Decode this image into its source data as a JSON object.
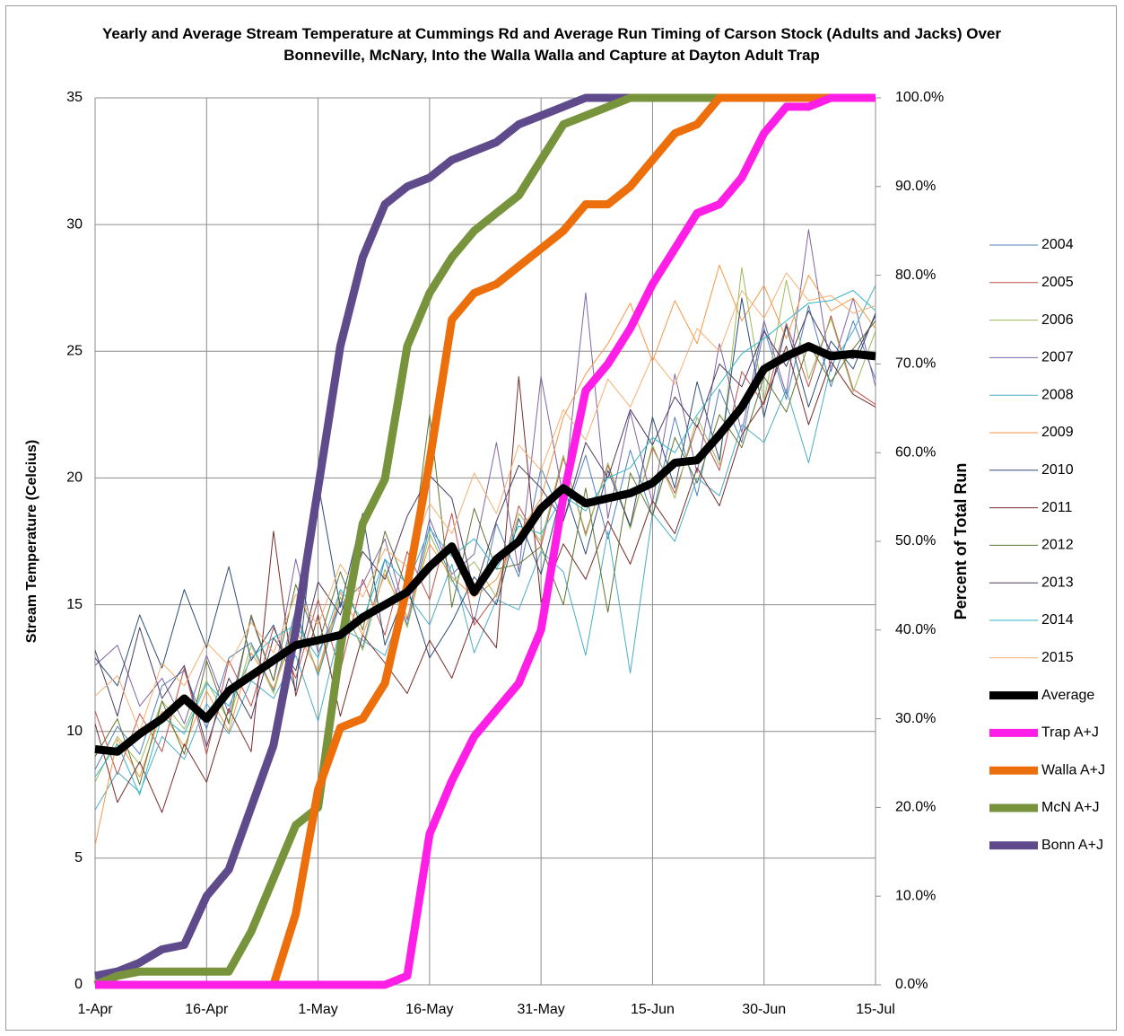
{
  "chart_data": {
    "type": "line",
    "title": "Yearly and Average Stream Temperature at Cummings Rd and Average Run Timing of Carson Stock (Adults and Jacks) Over Bonneville, McNary, Into the Walla Walla and Capture at Dayton Adult Trap",
    "y_label": "Stream Temperature (Celcius)",
    "y2_label": "Percent of Total Run",
    "categories": [
      "1-Apr",
      null,
      null,
      null,
      null,
      "16-Apr",
      null,
      null,
      null,
      null,
      "1-May",
      null,
      null,
      null,
      null,
      "16-May",
      null,
      null,
      null,
      null,
      "31-May",
      null,
      null,
      null,
      null,
      "15-Jun",
      null,
      null,
      null,
      null,
      "30-Jun",
      null,
      null,
      null,
      null,
      "15-Jul"
    ],
    "ylim": [
      0,
      35
    ],
    "yticks": [
      0,
      5,
      10,
      15,
      20,
      25,
      30,
      35
    ],
    "y2lim": [
      0,
      100
    ],
    "y2ticks": [
      {
        "value": 0,
        "label": "0.0%"
      },
      {
        "value": 10,
        "label": "10.0%"
      },
      {
        "value": 20,
        "label": "20.0%"
      },
      {
        "value": 30,
        "label": "30.0%"
      },
      {
        "value": 40,
        "label": "40.0%"
      },
      {
        "value": 50,
        "label": "50.0%"
      },
      {
        "value": 60,
        "label": "60.0%"
      },
      {
        "value": 70,
        "label": "70.0%"
      },
      {
        "value": 80,
        "label": "80.0%"
      },
      {
        "value": 90,
        "label": "90.0%"
      },
      {
        "value": 100,
        "label": "100.0%"
      }
    ],
    "grid": true,
    "legend": "right",
    "series": [
      {
        "name": "2004",
        "color": "#4f81bd",
        "width": 1,
        "values": [
          8.5,
          10.2,
          9.1,
          11.8,
          12.4,
          10.1,
          12.9,
          13.5,
          11.6,
          14.8,
          12.2,
          15.1,
          13.3,
          16.8,
          14.2,
          18.1,
          16.0,
          14.3,
          18.2,
          16.1,
          20.4,
          18.3,
          20.9,
          17.6,
          21.1,
          18.5,
          22.4,
          19.3,
          23.5,
          21.4,
          25.9,
          23.1,
          26.8,
          23.6,
          26.2,
          23.9
        ]
      },
      {
        "name": "2005",
        "color": "#c0504d",
        "width": 1,
        "values": [
          10.8,
          8.3,
          10.7,
          9.2,
          12.5,
          9.1,
          12.8,
          11.0,
          14.1,
          12.1,
          15.2,
          12.4,
          16.0,
          13.8,
          17.1,
          15.2,
          18.6,
          14.2,
          15.4,
          18.9,
          17.3,
          20.8,
          17.8,
          20.5,
          18.1,
          21.2,
          19.4,
          22.1,
          20.3,
          24.2,
          22.9,
          26.1,
          23.6,
          26.4,
          23.5,
          22.9
        ]
      },
      {
        "name": "2006",
        "color": "#9bbb59",
        "width": 1,
        "values": [
          8.0,
          9.8,
          8.7,
          11.2,
          10.1,
          12.0,
          10.4,
          13.4,
          11.5,
          14.6,
          12.3,
          15.3,
          13.2,
          16.4,
          14.1,
          17.8,
          15.9,
          16.7,
          15.3,
          18.6,
          17.5,
          20.9,
          17.7,
          20.6,
          18.0,
          21.3,
          19.2,
          22.4,
          20.5,
          28.3,
          23.0,
          27.8,
          23.9,
          26.3,
          23.4,
          25.8
        ]
      },
      {
        "name": "2007",
        "color": "#8064a2",
        "width": 1,
        "values": [
          12.6,
          13.4,
          11.0,
          12.1,
          10.3,
          13.0,
          10.7,
          14.5,
          12.0,
          16.8,
          13.1,
          15.0,
          15.8,
          17.6,
          14.4,
          18.4,
          16.2,
          17.0,
          21.4,
          16.3,
          24.0,
          19.2,
          27.3,
          18.4,
          22.6,
          19.0,
          24.1,
          20.2,
          25.3,
          21.8,
          26.2,
          23.3,
          29.8,
          24.2,
          27.1,
          23.6
        ]
      },
      {
        "name": "2008",
        "color": "#4bacc6",
        "width": 1,
        "values": [
          6.9,
          8.4,
          7.6,
          9.8,
          8.9,
          11.1,
          9.9,
          12.0,
          11.3,
          13.0,
          10.4,
          14.1,
          13.6,
          13.0,
          15.4,
          14.2,
          16.6,
          13.1,
          15.2,
          14.8,
          17.1,
          16.3,
          13.0,
          17.9,
          12.3,
          18.6,
          17.5,
          20.0,
          19.3,
          22.1,
          21.4,
          23.5,
          20.6,
          24.4,
          25.8,
          27.6
        ]
      },
      {
        "name": "2009",
        "color": "#f79646",
        "width": 1,
        "values": [
          5.5,
          9.7,
          8.2,
          10.8,
          9.4,
          11.6,
          10.0,
          13.1,
          11.7,
          14.0,
          12.4,
          15.5,
          13.8,
          16.2,
          14.5,
          17.4,
          16.1,
          15.3,
          16.0,
          17.8,
          19.2,
          22.4,
          24.1,
          25.3,
          26.9,
          24.6,
          27.0,
          25.3,
          28.4,
          26.2,
          27.6,
          25.5,
          28.0,
          26.6,
          27.1,
          25.9
        ]
      },
      {
        "name": "2010",
        "color": "#2c4d75",
        "width": 1,
        "values": [
          12.9,
          11.8,
          14.6,
          12.5,
          15.6,
          13.3,
          16.5,
          12.8,
          14.2,
          11.6,
          19.8,
          14.9,
          18.6,
          13.4,
          15.7,
          12.9,
          14.3,
          16.1,
          15.0,
          18.4,
          16.2,
          19.7,
          17.0,
          20.3,
          18.1,
          22.4,
          19.6,
          23.8,
          20.7,
          27.1,
          22.4,
          26.0,
          22.8,
          25.4,
          24.3,
          26.5
        ]
      },
      {
        "name": "2011",
        "color": "#772c2a",
        "width": 1,
        "values": [
          10.3,
          7.2,
          8.8,
          6.8,
          9.5,
          8.0,
          10.9,
          9.2,
          17.9,
          11.4,
          14.6,
          10.6,
          13.8,
          12.7,
          11.5,
          13.6,
          12.1,
          14.5,
          13.3,
          24.0,
          15.1,
          17.4,
          16.0,
          18.3,
          16.6,
          19.1,
          17.8,
          20.4,
          18.9,
          21.7,
          23.0,
          25.2,
          22.1,
          24.6,
          23.3,
          22.8
        ]
      },
      {
        "name": "2012",
        "color": "#5f7530",
        "width": 1,
        "values": [
          9.0,
          10.5,
          7.9,
          11.2,
          9.1,
          12.8,
          10.3,
          14.6,
          12.0,
          15.8,
          13.4,
          16.3,
          14.0,
          17.9,
          15.6,
          22.5,
          14.9,
          18.8,
          16.4,
          16.6,
          17.3,
          15.0,
          19.6,
          14.7,
          20.2,
          18.5,
          21.6,
          19.8,
          22.5,
          21.2,
          24.0,
          22.6,
          25.3,
          23.8,
          25.1,
          26.2
        ]
      },
      {
        "name": "2013",
        "color": "#4d3b62",
        "width": 1,
        "values": [
          13.2,
          10.6,
          14.1,
          11.3,
          12.6,
          9.4,
          12.1,
          10.5,
          13.7,
          12.4,
          15.9,
          14.6,
          17.1,
          16.0,
          18.5,
          20.1,
          19.2,
          15.5,
          18.3,
          20.5,
          19.6,
          18.3,
          21.4,
          20.0,
          22.7,
          21.3,
          23.2,
          22.0,
          24.5,
          23.6,
          25.8,
          24.4,
          26.6,
          25.0,
          24.7,
          26.4
        ]
      },
      {
        "name": "2014",
        "color": "#31b6c8",
        "width": 1,
        "values": [
          8.2,
          9.5,
          7.5,
          10.6,
          9.9,
          11.9,
          11.0,
          12.9,
          13.7,
          14.2,
          12.9,
          15.6,
          14.4,
          16.8,
          15.8,
          18.0,
          16.9,
          17.6,
          16.4,
          18.1,
          17.8,
          19.3,
          18.7,
          20.0,
          20.4,
          21.6,
          21.0,
          22.5,
          23.7,
          24.9,
          25.5,
          26.2,
          26.9,
          27.0,
          27.4,
          26.6
        ]
      },
      {
        "name": "2015",
        "color": "#f5b070",
        "width": 1,
        "values": [
          11.4,
          12.2,
          10.0,
          12.7,
          11.8,
          13.5,
          12.6,
          14.3,
          13.1,
          15.4,
          14.2,
          16.6,
          15.3,
          17.2,
          16.5,
          19.0,
          17.8,
          20.2,
          18.6,
          21.3,
          20.3,
          22.7,
          21.5,
          23.9,
          22.8,
          24.8,
          23.7,
          25.9,
          25.0,
          27.4,
          26.3,
          28.1,
          27.0,
          27.2,
          26.5,
          26.8
        ]
      },
      {
        "name": "Average",
        "color": "#000000",
        "width": 9,
        "values": [
          9.3,
          9.2,
          9.9,
          10.5,
          11.3,
          10.5,
          11.6,
          12.2,
          12.8,
          13.4,
          13.6,
          13.8,
          14.5,
          15.0,
          15.5,
          16.5,
          17.3,
          15.5,
          16.8,
          17.5,
          18.8,
          19.6,
          19.0,
          19.2,
          19.4,
          19.8,
          20.6,
          20.7,
          21.7,
          22.8,
          24.3,
          24.8,
          25.2,
          24.8,
          24.9,
          24.8
        ]
      },
      {
        "name": "Trap A+J",
        "color": "#ff1ee6",
        "width": 9,
        "axis": "y2",
        "values": [
          0,
          0,
          0,
          0,
          0,
          0,
          0,
          0,
          0,
          0,
          0,
          0,
          0,
          0,
          1,
          17,
          23,
          28,
          31,
          34,
          40,
          55,
          67,
          70,
          74,
          79,
          83,
          87,
          88,
          91,
          96,
          99,
          99,
          100,
          100,
          100
        ]
      },
      {
        "name": "Walla A+J",
        "color": "#ec6f0c",
        "width": 9,
        "axis": "y2",
        "values": [
          0,
          0,
          0,
          0,
          0,
          0,
          0,
          0,
          0,
          8,
          22,
          29,
          30,
          34,
          45,
          59,
          75,
          78,
          79,
          81,
          83,
          85,
          88,
          88,
          90,
          93,
          96,
          97,
          100,
          100,
          100,
          100,
          100,
          100,
          100,
          100
        ]
      },
      {
        "name": "McN A+J",
        "color": "#77933c",
        "width": 9,
        "axis": "y2",
        "values": [
          0,
          1,
          1.5,
          1.5,
          1.5,
          1.5,
          1.5,
          6,
          12,
          18,
          20,
          38,
          52,
          57,
          72,
          78,
          82,
          85,
          87,
          89,
          93,
          97,
          98,
          99,
          100,
          100,
          100,
          100,
          100,
          100,
          100,
          100,
          100,
          100,
          100,
          100
        ]
      },
      {
        "name": "Bonn A+J",
        "color": "#5f4b8b",
        "width": 9,
        "axis": "y2",
        "values": [
          1,
          1.5,
          2.5,
          4,
          4.5,
          10,
          13,
          20,
          27,
          40,
          56,
          72,
          82,
          88,
          90,
          91,
          93,
          94,
          95,
          97,
          98,
          99,
          100,
          100,
          100,
          100,
          100,
          100,
          100,
          100,
          100,
          100,
          100,
          100,
          100,
          100
        ]
      }
    ]
  }
}
